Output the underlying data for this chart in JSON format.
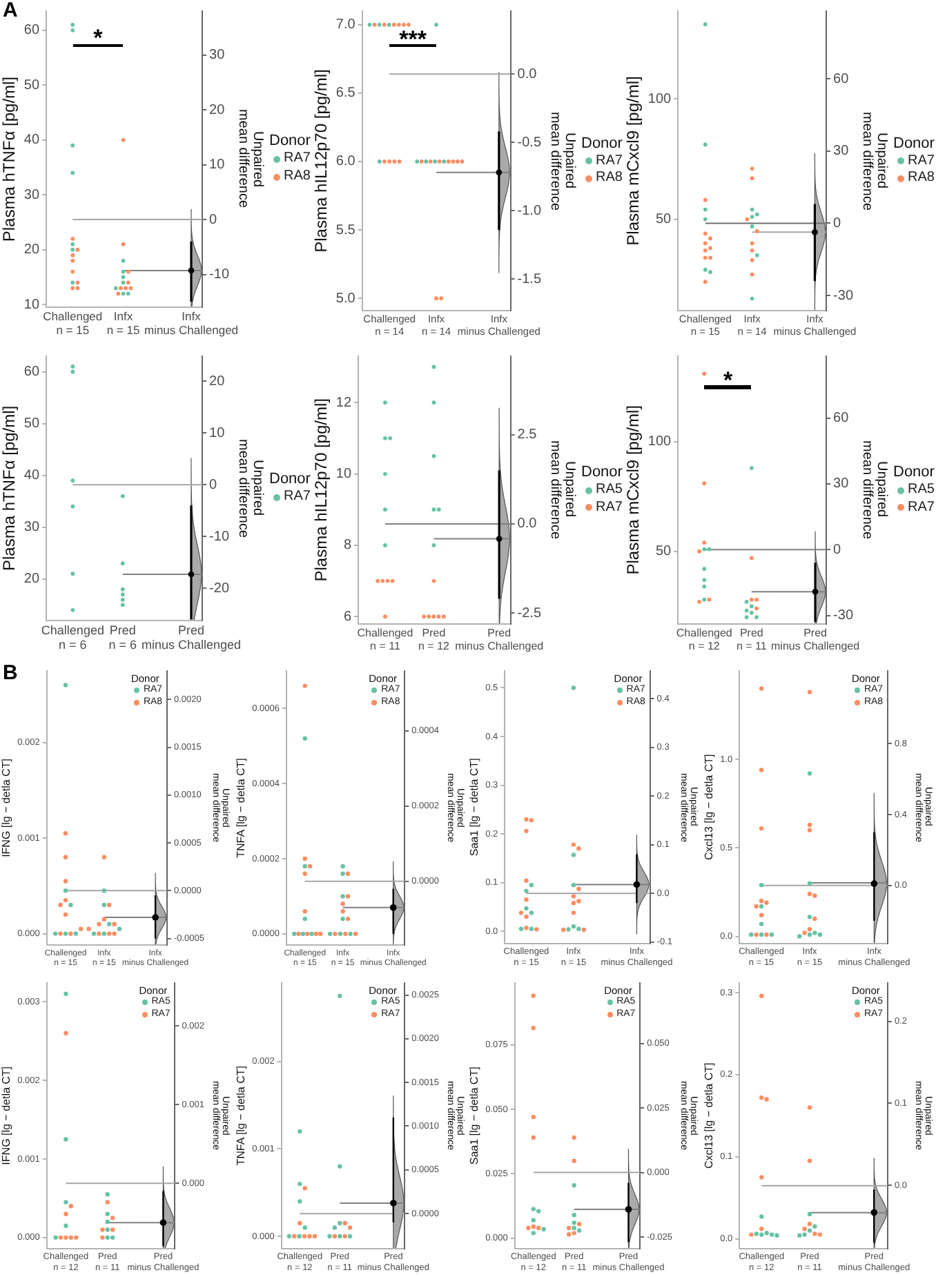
{
  "chart_data": [
    {
      "type": "scatter",
      "title": "A",
      "ylabel": "Plasma hTNFα [pg/ml]",
      "y2label": "Unpaired\nmean difference",
      "legend_title": "Donor",
      "legend": "right",
      "marker": "circle",
      "categories": [
        "Challenged\nn = 15",
        "Infx\nn = 15",
        "Infx\nminus Challenged"
      ],
      "ylim": [
        9.5,
        63.5
      ],
      "yticks": [
        10,
        20,
        30,
        40,
        50,
        60
      ],
      "y2lim": [
        -16,
        38
      ],
      "y2ticks": [
        -10,
        0,
        10,
        20,
        30
      ],
      "series": [
        {
          "name": "RA7",
          "color": "#66c2a5",
          "x": [
            "Challenged\nn = 15",
            "Challenged\nn = 15",
            "Challenged\nn = 15",
            "Challenged\nn = 15",
            "Challenged\nn = 15",
            "Challenged\nn = 15",
            "Challenged\nn = 15",
            "Infx\nn = 15",
            "Infx\nn = 15",
            "Infx\nn = 15",
            "Infx\nn = 15",
            "Infx\nn = 15",
            "Infx\nn = 15",
            "Infx\nn = 15"
          ],
          "values": [
            61,
            60,
            39,
            34,
            21,
            20,
            14,
            18,
            16,
            15,
            14,
            13,
            12,
            12
          ]
        },
        {
          "name": "RA8",
          "color": "#fc8d62",
          "x": [
            "Challenged\nn = 15",
            "Challenged\nn = 15",
            "Challenged\nn = 15",
            "Challenged\nn = 15",
            "Challenged\nn = 15",
            "Challenged\nn = 15",
            "Challenged\nn = 15",
            "Challenged\nn = 15",
            "Infx\nn = 15",
            "Infx\nn = 15",
            "Infx\nn = 15",
            "Infx\nn = 15",
            "Infx\nn = 15",
            "Infx\nn = 15",
            "Infx\nn = 15",
            "Infx\nn = 15"
          ],
          "values": [
            22,
            20,
            19,
            18,
            16,
            14,
            13,
            13,
            40,
            21,
            16,
            14,
            13,
            13,
            13,
            12
          ]
        },
        {
          "color": "#000000",
          "axis": "y2",
          "x": [
            "Infx\nminus Challenged"
          ],
          "values": [
            -9.3
          ],
          "errors": [
            [
              -15,
              -4
            ]
          ]
        }
      ],
      "ref_lines": [
        {
          "axis": "y",
          "value": 25.5,
          "color": "#a6a6a6"
        },
        {
          "axis": "y",
          "value": 16.2,
          "color": "#808080"
        }
      ],
      "annotations": [
        "*"
      ]
    },
    {
      "type": "scatter",
      "ylabel": "Plasma hIL12p70 [pg/ml]",
      "y2label": "Unpaired\nmean difference",
      "legend_title": "Donor",
      "legend": "right",
      "marker": "circle",
      "categories": [
        "Challenged\nn = 14",
        "Infx\nn = 14",
        "Infx\nminus Challenged"
      ],
      "ylim": [
        4.91,
        7.1
      ],
      "yticks": [
        {
          "value": 5,
          "label": "5.0"
        },
        5.5,
        {
          "value": 6,
          "label": "6.0"
        },
        6.5,
        {
          "value": 7,
          "label": "7.0"
        }
      ],
      "y2lim": [
        -1.73,
        0.46
      ],
      "y2ticks": [
        -1.5,
        {
          "value": -1,
          "label": "-1.0"
        },
        -0.5,
        {
          "value": 0,
          "label": "0.0"
        }
      ],
      "series": [
        {
          "name": "RA7",
          "color": "#66c2a5",
          "x": [
            "Challenged\nn = 14",
            "Challenged\nn = 14",
            "Challenged\nn = 14",
            "Challenged\nn = 14",
            "Infx\nn = 14",
            "Infx\nn = 14",
            "Infx\nn = 14",
            "Infx\nn = 14",
            "Infx\nn = 14"
          ],
          "values": [
            7,
            7,
            7,
            6,
            7,
            6,
            6,
            6,
            6
          ]
        },
        {
          "name": "RA8",
          "color": "#fc8d62",
          "x": [
            "Challenged\nn = 14",
            "Challenged\nn = 14",
            "Challenged\nn = 14",
            "Challenged\nn = 14",
            "Challenged\nn = 14",
            "Challenged\nn = 14",
            "Challenged\nn = 14",
            "Challenged\nn = 14",
            "Challenged\nn = 14",
            "Challenged\nn = 14",
            "Infx\nn = 14",
            "Infx\nn = 14",
            "Infx\nn = 14",
            "Infx\nn = 14",
            "Infx\nn = 14",
            "Infx\nn = 14",
            "Infx\nn = 14",
            "Infx\nn = 14",
            "Infx\nn = 14"
          ],
          "values": [
            7,
            7,
            7,
            7,
            7,
            7,
            6,
            6,
            6,
            6,
            6,
            6,
            6,
            6,
            6,
            6,
            6,
            5,
            5
          ]
        },
        {
          "color": "#000000",
          "axis": "y2",
          "x": [
            "Infx\nminus Challenged"
          ],
          "values": [
            -0.72
          ],
          "errors": [
            [
              -1.14,
              -0.42
            ]
          ]
        }
      ],
      "ref_lines": [
        {
          "axis": "y",
          "value": 6.64,
          "color": "#a6a6a6"
        },
        {
          "axis": "y",
          "value": 5.92,
          "color": "#808080"
        }
      ],
      "annotations": [
        "***"
      ]
    },
    {
      "type": "scatter",
      "ylabel": "Plasma mCxcl9 [pg/ml]",
      "y2label": "Unpaired\nmean difference",
      "legend_title": "Donor",
      "legend": "right",
      "marker": "circle",
      "categories": [
        "Challenged\nn = 15",
        "Infx\nn = 14",
        "Infx\nminus Challenged"
      ],
      "ylim": [
        12,
        136.5
      ],
      "yticks": [
        50,
        100
      ],
      "y2lim": [
        -36.3,
        88.2
      ],
      "y2ticks": [
        -30,
        0,
        30,
        60
      ],
      "series": [
        {
          "name": "RA7",
          "color": "#66c2a5",
          "x": [
            "Challenged\nn = 15",
            "Challenged\nn = 15",
            "Challenged\nn = 15",
            "Challenged\nn = 15",
            "Challenged\nn = 15",
            "Challenged\nn = 15",
            "Infx\nn = 14",
            "Infx\nn = 14",
            "Infx\nn = 14",
            "Infx\nn = 14",
            "Infx\nn = 14",
            "Infx\nn = 14"
          ],
          "values": [
            131,
            81,
            54,
            50,
            29,
            28,
            54,
            52,
            51,
            47,
            35,
            17
          ]
        },
        {
          "name": "RA8",
          "color": "#fc8d62",
          "x": [
            "Challenged\nn = 15",
            "Challenged\nn = 15",
            "Challenged\nn = 15",
            "Challenged\nn = 15",
            "Challenged\nn = 15",
            "Challenged\nn = 15",
            "Challenged\nn = 15",
            "Challenged\nn = 15",
            "Challenged\nn = 15",
            "Infx\nn = 14",
            "Infx\nn = 14",
            "Infx\nn = 14",
            "Infx\nn = 14",
            "Infx\nn = 14",
            "Infx\nn = 14",
            "Infx\nn = 14",
            "Infx\nn = 14"
          ],
          "values": [
            58,
            44,
            42,
            40,
            38,
            37,
            34,
            34,
            24,
            71,
            67,
            50,
            45,
            40,
            37,
            33,
            27
          ]
        },
        {
          "color": "#000000",
          "axis": "y2",
          "x": [
            "Infx\nminus Challenged"
          ],
          "values": [
            -3.7
          ],
          "errors": [
            [
              -24,
              8
            ]
          ]
        }
      ],
      "ref_lines": [
        {
          "axis": "y",
          "value": 48.3,
          "color": "#707070"
        },
        {
          "axis": "y",
          "value": 44.6,
          "color": "#a6a6a6"
        }
      ]
    },
    {
      "type": "scatter",
      "ylabel": "Plasma hTNFα [pg/ml]",
      "y2label": "Unpaired\nmean difference",
      "legend_title": "Donor",
      "legend": "right",
      "marker": "circle",
      "categories": [
        "Challenged\nn = 6",
        "Pred\nn = 6",
        "Pred\nminus Challenged"
      ],
      "ylim": [
        12,
        63
      ],
      "yticks": [
        20,
        30,
        40,
        50,
        60
      ],
      "y2lim": [
        -26.2,
        24.8
      ],
      "y2ticks": [
        -20,
        -10,
        0,
        10,
        20
      ],
      "series": [
        {
          "name": "RA7",
          "color": "#66c2a5",
          "x": [
            "Challenged\nn = 6",
            "Challenged\nn = 6",
            "Challenged\nn = 6",
            "Challenged\nn = 6",
            "Challenged\nn = 6",
            "Challenged\nn = 6",
            "Pred\nn = 6",
            "Pred\nn = 6",
            "Pred\nn = 6",
            "Pred\nn = 6",
            "Pred\nn = 6",
            "Pred\nn = 6"
          ],
          "values": [
            61,
            60,
            39,
            34,
            21,
            14,
            36,
            23,
            18,
            17,
            16,
            15
          ]
        },
        {
          "color": "#000000",
          "axis": "y2",
          "x": [
            "Pred\nminus Challenged"
          ],
          "values": [
            -17.3
          ],
          "errors": [
            [
              -26,
              -4
            ]
          ]
        }
      ],
      "ref_lines": [
        {
          "axis": "y",
          "value": 38.2,
          "color": "#a6a6a6"
        },
        {
          "axis": "y",
          "value": 20.9,
          "color": "#808080"
        }
      ]
    },
    {
      "type": "scatter",
      "ylabel": "Plasma hIL12p70 [pg/ml]",
      "y2label": "Unpaired\nmean difference",
      "legend_title": "Donor",
      "legend": "right",
      "marker": "circle",
      "categories": [
        "Challenged\nn = 11",
        "Pred\nn = 12",
        "Pred\nminus Challenged"
      ],
      "ylim": [
        5.8,
        13.3
      ],
      "yticks": [
        6,
        8,
        10,
        12
      ],
      "y2lim": [
        -2.8,
        4.7
      ],
      "y2ticks": [
        -2.5,
        {
          "value": 0,
          "label": "0.0"
        },
        2.5
      ],
      "series": [
        {
          "name": "RA5",
          "color": "#66c2a5",
          "x": [
            "Challenged\nn = 11",
            "Challenged\nn = 11",
            "Challenged\nn = 11",
            "Challenged\nn = 11",
            "Challenged\nn = 11",
            "Challenged\nn = 11",
            "Pred\nn = 12",
            "Pred\nn = 12",
            "Pred\nn = 12",
            "Pred\nn = 12",
            "Pred\nn = 12",
            "Pred\nn = 12"
          ],
          "values": [
            12,
            11,
            11,
            10,
            9,
            8,
            13,
            12,
            10.5,
            9,
            9,
            8
          ]
        },
        {
          "name": "RA7",
          "color": "#fc8d62",
          "x": [
            "Challenged\nn = 11",
            "Challenged\nn = 11",
            "Challenged\nn = 11",
            "Challenged\nn = 11",
            "Challenged\nn = 11",
            "Pred\nn = 12",
            "Pred\nn = 12",
            "Pred\nn = 12",
            "Pred\nn = 12",
            "Pred\nn = 12",
            "Pred\nn = 12"
          ],
          "values": [
            7,
            7,
            7,
            7,
            6,
            7,
            6,
            6,
            6,
            6,
            6
          ]
        },
        {
          "color": "#000000",
          "axis": "y2",
          "x": [
            "Pred\nminus Challenged"
          ],
          "values": [
            -0.42
          ],
          "errors": [
            [
              -2.1,
              1.5
            ]
          ]
        }
      ],
      "ref_lines": [
        {
          "axis": "y",
          "value": 8.6,
          "color": "#808080"
        },
        {
          "axis": "y",
          "value": 8.18,
          "color": "#808080"
        }
      ]
    },
    {
      "type": "scatter",
      "ylabel": "Plasma mCxcl9 [pg/ml]",
      "y2label": "Unpaired\nmean difference",
      "legend_title": "Donor",
      "legend": "right",
      "marker": "circle",
      "categories": [
        "Challenged\nn = 12",
        "Pred\nn = 11",
        "Pred\nminus Challenged"
      ],
      "ylim": [
        17,
        139
      ],
      "yticks": [
        50,
        100
      ],
      "y2lim": [
        -33.8,
        88.2
      ],
      "y2ticks": [
        -30,
        0,
        30,
        60
      ],
      "series": [
        {
          "name": "RA5",
          "color": "#66c2a5",
          "x": [
            "Challenged\nn = 12",
            "Challenged\nn = 12",
            "Challenged\nn = 12",
            "Challenged\nn = 12",
            "Challenged\nn = 12",
            "Challenged\nn = 12",
            "Pred\nn = 11",
            "Pred\nn = 11",
            "Pred\nn = 11",
            "Pred\nn = 11",
            "Pred\nn = 11",
            "Pred\nn = 11",
            "Pred\nn = 11"
          ],
          "values": [
            51,
            51,
            42,
            37,
            34,
            28,
            88,
            27,
            25,
            23,
            22,
            20,
            20
          ]
        },
        {
          "name": "RA7",
          "color": "#fc8d62",
          "x": [
            "Challenged\nn = 12",
            "Challenged\nn = 12",
            "Challenged\nn = 12",
            "Challenged\nn = 12",
            "Challenged\nn = 12",
            "Challenged\nn = 12",
            "Pred\nn = 11",
            "Pred\nn = 11",
            "Pred\nn = 11",
            "Pred\nn = 11"
          ],
          "values": [
            131,
            81,
            54,
            50,
            28,
            27,
            47,
            28,
            28,
            24
          ]
        },
        {
          "color": "#000000",
          "axis": "y2",
          "x": [
            "Pred\nminus Challenged"
          ],
          "values": [
            -19.2
          ],
          "errors": [
            [
              -33,
              -6
            ]
          ]
        }
      ],
      "ref_lines": [
        {
          "axis": "y",
          "value": 50.8,
          "color": "#808080"
        },
        {
          "axis": "y",
          "value": 31.6,
          "color": "#808080"
        }
      ],
      "annotations": [
        "*"
      ]
    },
    {
      "type": "scatter",
      "title": "B",
      "ylabel": "IFNG [lg − detla CT]",
      "y2label": "Unpaired\nmean difference",
      "legend_title": "Donor",
      "legend": "top right",
      "marker": "circle",
      "categories": [
        "Challenged\nn = 15",
        "Infx\nn = 15",
        "Infx\nminus Challenged"
      ],
      "ylim": [
        -0.00012,
        0.00275
      ],
      "yticks": [
        {
          "value": 0,
          "label": "0.000"
        },
        0.001,
        0.002
      ],
      "y2lim": [
        -0.00057,
        0.0023
      ],
      "y2ticks": [
        -0.0005,
        {
          "value": 0,
          "label": "0.0000"
        },
        0.0005,
        {
          "value": 0.001,
          "label": "0.0010"
        },
        0.0015,
        {
          "value": 0.002,
          "label": "0.0020"
        }
      ],
      "series": [
        {
          "name": "RA7",
          "color": "#66c2a5",
          "x": [
            "Challenged\nn = 15",
            "Challenged\nn = 15",
            "Challenged\nn = 15",
            "Challenged\nn = 15",
            "Challenged\nn = 15",
            "Challenged\nn = 15",
            "Infx\nn = 15",
            "Infx\nn = 15",
            "Infx\nn = 15",
            "Infx\nn = 15",
            "Infx\nn = 15",
            "Infx\nn = 15"
          ],
          "values": [
            0.0026,
            0.00045,
            0.0003,
            0,
            0,
            0,
            0.00045,
            0.0003,
            0.0001,
            5e-05,
            0,
            0
          ]
        },
        {
          "name": "RA8",
          "color": "#fc8d62",
          "x": [
            "Challenged\nn = 15",
            "Challenged\nn = 15",
            "Challenged\nn = 15",
            "Challenged\nn = 15",
            "Challenged\nn = 15",
            "Challenged\nn = 15",
            "Challenged\nn = 15",
            "Challenged\nn = 15",
            "Challenged\nn = 15",
            "Infx\nn = 15",
            "Infx\nn = 15",
            "Infx\nn = 15",
            "Infx\nn = 15",
            "Infx\nn = 15",
            "Infx\nn = 15",
            "Infx\nn = 15",
            "Infx\nn = 15",
            "Infx\nn = 15"
          ],
          "values": [
            0.00105,
            0.0008,
            0.00055,
            0.00035,
            0.0003,
            0.0002,
            5e-05,
            0,
            0,
            0.0008,
            0.0003,
            0.00015,
            0.0001,
            0.0001,
            5e-05,
            0,
            0,
            0
          ]
        },
        {
          "color": "#000000",
          "axis": "y2",
          "x": [
            "Infx\nminus Challenged"
          ],
          "values": [
            -0.00028
          ],
          "errors": [
            [
              -0.0005,
              -5e-05
            ]
          ]
        }
      ],
      "ref_lines": [
        {
          "axis": "y",
          "value": 0.00045,
          "color": "#a6a6a6"
        },
        {
          "axis": "y",
          "value": 0.00017,
          "color": "#808080"
        }
      ]
    },
    {
      "type": "scatter",
      "ylabel": "TNFA [lg − detla CT]",
      "y2label": "Unpaired\nmean difference",
      "legend_title": "Donor",
      "legend": "top right",
      "marker": "circle",
      "categories": [
        "Challenged\nn = 15",
        "Infx\nn = 15",
        "Infx\nminus Challenged"
      ],
      "ylim": [
        -3e-05,
        0.0007
      ],
      "yticks": [
        {
          "value": 0,
          "label": "0.0000"
        },
        0.0002,
        0.0004,
        0.0006
      ],
      "y2lim": [
        -0.00017,
        0.00056
      ],
      "y2ticks": [
        {
          "value": 0,
          "label": "0.0000"
        },
        0.0002,
        0.0004
      ],
      "series": [
        {
          "name": "RA7",
          "color": "#66c2a5",
          "x": [
            "Challenged\nn = 15",
            "Challenged\nn = 15",
            "Challenged\nn = 15",
            "Challenged\nn = 15",
            "Challenged\nn = 15",
            "Challenged\nn = 15",
            "Infx\nn = 15",
            "Infx\nn = 15",
            "Infx\nn = 15",
            "Infx\nn = 15",
            "Infx\nn = 15",
            "Infx\nn = 15",
            "Infx\nn = 15"
          ],
          "values": [
            0.00052,
            0.00018,
            4e-05,
            0,
            0,
            0,
            0.00018,
            0.00016,
            0.0001,
            4e-05,
            0,
            0,
            0
          ]
        },
        {
          "name": "RA8",
          "color": "#fc8d62",
          "x": [
            "Challenged\nn = 15",
            "Challenged\nn = 15",
            "Challenged\nn = 15",
            "Challenged\nn = 15",
            "Challenged\nn = 15",
            "Challenged\nn = 15",
            "Challenged\nn = 15",
            "Challenged\nn = 15",
            "Challenged\nn = 15",
            "Infx\nn = 15",
            "Infx\nn = 15",
            "Infx\nn = 15",
            "Infx\nn = 15",
            "Infx\nn = 15",
            "Infx\nn = 15",
            "Infx\nn = 15",
            "Infx\nn = 15"
          ],
          "values": [
            0.00066,
            0.0002,
            0.00018,
            0.00016,
            6e-05,
            0,
            0,
            0,
            0,
            0.00016,
            0.0001,
            8e-05,
            6e-05,
            4e-05,
            0,
            0,
            0
          ]
        },
        {
          "color": "#000000",
          "axis": "y2",
          "x": [
            "Infx\nminus Challenged"
          ],
          "values": [
            -7e-05
          ],
          "errors": [
            [
              -0.00014,
              -2e-05
            ]
          ]
        }
      ],
      "ref_lines": [
        {
          "axis": "y",
          "value": 0.00014,
          "color": "#a6a6a6"
        },
        {
          "axis": "y",
          "value": 7e-05,
          "color": "#808080"
        }
      ]
    },
    {
      "type": "scatter",
      "ylabel": "Saa1 [lg − detla CT]",
      "y2label": "Unpaired\nmean difference",
      "legend_title": "Donor",
      "legend": "top right",
      "marker": "circle",
      "categories": [
        "Challenged\nn = 15",
        "Infx\nn = 15",
        "Infx\nminus Challenged"
      ],
      "ylim": [
        -0.025,
        0.535
      ],
      "yticks": [
        {
          "value": 0,
          "label": "0.0"
        },
        0.1,
        0.2,
        0.3,
        0.4,
        0.5
      ],
      "y2lim": [
        -0.103,
        0.457
      ],
      "y2ticks": [
        -0.1,
        {
          "value": 0,
          "label": "0.0"
        },
        0.1,
        0.2,
        0.3,
        0.4
      ],
      "series": [
        {
          "name": "RA7",
          "color": "#66c2a5",
          "x": [
            "Challenged\nn = 15",
            "Challenged\nn = 15",
            "Challenged\nn = 15",
            "Challenged\nn = 15",
            "Challenged\nn = 15",
            "Challenged\nn = 15",
            "Infx\nn = 15",
            "Infx\nn = 15",
            "Infx\nn = 15",
            "Infx\nn = 15",
            "Infx\nn = 15",
            "Infx\nn = 15"
          ],
          "values": [
            0.095,
            0.083,
            0.047,
            0.038,
            0.005,
            0.005,
            0.5,
            0.157,
            0.095,
            0.01,
            0.005,
            0.004
          ]
        },
        {
          "name": "RA8",
          "color": "#fc8d62",
          "x": [
            "Challenged\nn = 15",
            "Challenged\nn = 15",
            "Challenged\nn = 15",
            "Challenged\nn = 15",
            "Challenged\nn = 15",
            "Challenged\nn = 15",
            "Challenged\nn = 15",
            "Challenged\nn = 15",
            "Challenged\nn = 15",
            "Infx\nn = 15",
            "Infx\nn = 15",
            "Infx\nn = 15",
            "Infx\nn = 15",
            "Infx\nn = 15",
            "Infx\nn = 15",
            "Infx\nn = 15",
            "Infx\nn = 15",
            "Infx\nn = 15"
          ],
          "values": [
            0.23,
            0.228,
            0.206,
            0.104,
            0.065,
            0.038,
            0.03,
            0.007,
            0.004,
            0.178,
            0.17,
            0.087,
            0.072,
            0.062,
            0.058,
            0.038,
            0.003,
            0.003
          ]
        },
        {
          "color": "#000000",
          "axis": "y2",
          "x": [
            "Infx\nminus Challenged"
          ],
          "values": [
            0.018
          ],
          "errors": [
            [
              -0.02,
              0.08
            ]
          ]
        }
      ],
      "ref_lines": [
        {
          "axis": "y",
          "value": 0.078,
          "color": "#a6a6a6"
        },
        {
          "axis": "y",
          "value": 0.096,
          "color": "#808080"
        }
      ]
    },
    {
      "type": "scatter",
      "ylabel": "Cxcl13 [lg − detla CT]",
      "y2label": "Unpaired\nmean difference",
      "legend_title": "Donor",
      "legend": "top right",
      "marker": "circle",
      "categories": [
        "Challenged\nn = 15",
        "Infx\nn = 15",
        "Infx\nminus Challenged"
      ],
      "ylim": [
        -0.04,
        1.5
      ],
      "yticks": [
        {
          "value": 0,
          "label": "0.0"
        },
        0.5,
        {
          "value": 1,
          "label": "1.0"
        }
      ],
      "y2lim": [
        -0.328,
        1.212
      ],
      "y2ticks": [
        {
          "value": 0,
          "label": "0.0"
        },
        0.4,
        0.8
      ],
      "series": [
        {
          "name": "RA7",
          "color": "#66c2a5",
          "x": [
            "Challenged\nn = 15",
            "Challenged\nn = 15",
            "Challenged\nn = 15",
            "Challenged\nn = 15",
            "Challenged\nn = 15",
            "Challenged\nn = 15",
            "Infx\nn = 15",
            "Infx\nn = 15",
            "Infx\nn = 15",
            "Infx\nn = 15",
            "Infx\nn = 15",
            "Infx\nn = 15",
            "Infx\nn = 15"
          ],
          "values": [
            0.29,
            0.17,
            0.07,
            0.01,
            0.01,
            0.01,
            0.92,
            0.3,
            0.11,
            0.02,
            0.01,
            0.01,
            0.0
          ]
        },
        {
          "name": "RA8",
          "color": "#fc8d62",
          "x": [
            "Challenged\nn = 15",
            "Challenged\nn = 15",
            "Challenged\nn = 15",
            "Challenged\nn = 15",
            "Challenged\nn = 15",
            "Challenged\nn = 15",
            "Challenged\nn = 15",
            "Challenged\nn = 15",
            "Challenged\nn = 15",
            "Infx\nn = 15",
            "Infx\nn = 15",
            "Infx\nn = 15",
            "Infx\nn = 15",
            "Infx\nn = 15",
            "Infx\nn = 15",
            "Infx\nn = 15",
            "Infx\nn = 15"
          ],
          "values": [
            1.4,
            0.94,
            0.61,
            0.2,
            0.19,
            0.17,
            0.12,
            0.01,
            0.01,
            1.38,
            0.63,
            0.6,
            0.24,
            0.23,
            0.1,
            0.04,
            0.02
          ]
        },
        {
          "color": "#000000",
          "axis": "y2",
          "x": [
            "Infx\nminus Challenged"
          ],
          "values": [
            0.01
          ],
          "errors": [
            [
              -0.2,
              0.3
            ]
          ]
        }
      ],
      "ref_lines": [
        {
          "axis": "y",
          "value": 0.288,
          "color": "#a6a6a6"
        },
        {
          "axis": "y",
          "value": 0.302,
          "color": "#808080"
        }
      ]
    },
    {
      "type": "scatter",
      "ylabel": "IFNG [lg − detla CT]",
      "y2label": "Unpaired\nmean difference",
      "legend_title": "Donor",
      "legend": "top right",
      "marker": "circle",
      "categories": [
        "Challenged\nn = 12",
        "Pred\nn = 11",
        "Pred\nminus Challenged"
      ],
      "ylim": [
        -0.00014,
        0.00324
      ],
      "yticks": [
        {
          "value": 0,
          "label": "0.000"
        },
        0.001,
        0.002,
        0.003
      ],
      "y2lim": [
        -0.00083,
        0.00255
      ],
      "y2ticks": [
        {
          "value": 0,
          "label": "0.000"
        },
        0.001,
        0.002
      ],
      "series": [
        {
          "name": "RA5",
          "color": "#66c2a5",
          "x": [
            "Challenged\nn = 12",
            "Challenged\nn = 12",
            "Challenged\nn = 12",
            "Challenged\nn = 12",
            "Challenged\nn = 12",
            "Pred\nn = 11",
            "Pred\nn = 11",
            "Pred\nn = 11",
            "Pred\nn = 11",
            "Pred\nn = 11",
            "Pred\nn = 11"
          ],
          "values": [
            0.0031,
            0.00125,
            0.00045,
            0.00015,
            0,
            0.00055,
            0.0003,
            0.0002,
            0.0001,
            0,
            0
          ]
        },
        {
          "name": "RA7",
          "color": "#fc8d62",
          "x": [
            "Challenged\nn = 12",
            "Challenged\nn = 12",
            "Challenged\nn = 12",
            "Challenged\nn = 12",
            "Challenged\nn = 12",
            "Challenged\nn = 12",
            "Challenged\nn = 12",
            "Pred\nn = 11",
            "Pred\nn = 11",
            "Pred\nn = 11",
            "Pred\nn = 11",
            "Pred\nn = 11"
          ],
          "values": [
            0.0026,
            0.0004,
            0.0003,
            0,
            0,
            0,
            0,
            0.00045,
            0.00025,
            0.0001,
            0.0001,
            0
          ]
        },
        {
          "color": "#000000",
          "axis": "y2",
          "x": [
            "Pred\nminus Challenged"
          ],
          "values": [
            -0.0005
          ],
          "errors": [
            [
              -0.0008,
              -0.0001
            ]
          ]
        }
      ],
      "ref_lines": [
        {
          "axis": "y",
          "value": 0.00069,
          "color": "#a6a6a6"
        },
        {
          "axis": "y",
          "value": 0.00019,
          "color": "#808080"
        }
      ]
    },
    {
      "type": "scatter",
      "ylabel": "TNFA [lg − detla CT]",
      "y2label": "Unpaired\nmean difference",
      "legend_title": "Donor",
      "legend": "top right",
      "marker": "circle",
      "categories": [
        "Challenged\nn = 12",
        "Pred\nn = 11",
        "Pred\nminus Challenged"
      ],
      "ylim": [
        -0.00014,
        0.0029
      ],
      "yticks": [
        {
          "value": 0,
          "label": "0.000"
        },
        0.001,
        0.002
      ],
      "y2lim": [
        -0.0004,
        0.00264
      ],
      "y2ticks": [
        {
          "value": 0,
          "label": "0.0000"
        },
        0.0005,
        {
          "value": 0.001,
          "label": "0.0010"
        },
        0.0015,
        {
          "value": 0.002,
          "label": "0.0020"
        },
        0.0025
      ],
      "series": [
        {
          "name": "RA5",
          "color": "#66c2a5",
          "x": [
            "Challenged\nn = 12",
            "Challenged\nn = 12",
            "Challenged\nn = 12",
            "Challenged\nn = 12",
            "Challenged\nn = 12",
            "Challenged\nn = 12",
            "Pred\nn = 11",
            "Pred\nn = 11",
            "Pred\nn = 11",
            "Pred\nn = 11",
            "Pred\nn = 11",
            "Pred\nn = 11",
            "Pred\nn = 11"
          ],
          "values": [
            0.0012,
            0.0006,
            0.0004,
            0.0001,
            0,
            0,
            0.00275,
            0.0008,
            0.00015,
            0.0001,
            0,
            0,
            0
          ]
        },
        {
          "name": "RA7",
          "color": "#fc8d62",
          "x": [
            "Challenged\nn = 12",
            "Challenged\nn = 12",
            "Challenged\nn = 12",
            "Challenged\nn = 12",
            "Challenged\nn = 12",
            "Challenged\nn = 12",
            "Pred\nn = 11",
            "Pred\nn = 11",
            "Pred\nn = 11",
            "Pred\nn = 11"
          ],
          "values": [
            0.00055,
            0.00015,
            0,
            0,
            0,
            0,
            0.00015,
            0.0001,
            0,
            0
          ]
        },
        {
          "color": "#000000",
          "axis": "y2",
          "x": [
            "Pred\nminus Challenged"
          ],
          "values": [
            0.00012
          ],
          "errors": [
            [
              -0.0001,
              0.0011
            ]
          ]
        }
      ],
      "ref_lines": [
        {
          "axis": "y",
          "value": 0.00026,
          "color": "#a6a6a6"
        },
        {
          "axis": "y",
          "value": 0.00038,
          "color": "#808080"
        }
      ]
    },
    {
      "type": "scatter",
      "ylabel": "Saa1 [lg − detla CT]",
      "y2label": "Unpaired\nmean difference",
      "legend_title": "Donor",
      "legend": "top right",
      "marker": "circle",
      "categories": [
        "Challenged\nn = 12",
        "Pred\nn = 11",
        "Pred\nminus Challenged"
      ],
      "ylim": [
        -0.004,
        0.099
      ],
      "yticks": [
        {
          "value": 0,
          "label": "0.000"
        },
        0.025,
        {
          "value": 0.05,
          "label": "0.050"
        },
        0.075
      ],
      "y2lim": [
        -0.0295,
        0.0735
      ],
      "y2ticks": [
        -0.025,
        {
          "value": 0,
          "label": "0.000"
        },
        0.025,
        {
          "value": 0.05,
          "label": "0.050"
        }
      ],
      "series": [
        {
          "name": "RA5",
          "color": "#66c2a5",
          "x": [
            "Challenged\nn = 12",
            "Challenged\nn = 12",
            "Challenged\nn = 12",
            "Challenged\nn = 12",
            "Challenged\nn = 12",
            "Pred\nn = 11",
            "Pred\nn = 11",
            "Pred\nn = 11",
            "Pred\nn = 11",
            "Pred\nn = 11"
          ],
          "values": [
            0.0113,
            0.0105,
            0.007,
            0.0035,
            0.002,
            0.0205,
            0.009,
            0.006,
            0.004,
            0.003
          ]
        },
        {
          "name": "RA7",
          "color": "#fc8d62",
          "x": [
            "Challenged\nn = 12",
            "Challenged\nn = 12",
            "Challenged\nn = 12",
            "Challenged\nn = 12",
            "Challenged\nn = 12",
            "Challenged\nn = 12",
            "Challenged\nn = 12",
            "Pred\nn = 11",
            "Pred\nn = 11",
            "Pred\nn = 11",
            "Pred\nn = 11",
            "Pred\nn = 11",
            "Pred\nn = 11"
          ],
          "values": [
            0.094,
            0.0815,
            0.047,
            0.039,
            0.0045,
            0.004,
            0.004,
            0.039,
            0.03,
            0.0055,
            0.004,
            0.002,
            0.0015
          ]
        },
        {
          "color": "#000000",
          "axis": "y2",
          "x": [
            "Pred\nminus Challenged"
          ],
          "values": [
            -0.0143
          ],
          "errors": [
            [
              -0.027,
              -0.004
            ]
          ]
        }
      ],
      "ref_lines": [
        {
          "axis": "y",
          "value": 0.0255,
          "color": "#a6a6a6"
        },
        {
          "axis": "y",
          "value": 0.0112,
          "color": "#808080"
        }
      ]
    },
    {
      "type": "scatter",
      "ylabel": "Cxcl13 [lg − detla CT]",
      "y2label": "Unpaired\nmean difference",
      "legend_title": "Donor",
      "legend": "top right",
      "marker": "circle",
      "categories": [
        "Challenged\nn = 12",
        "Pred\nn = 11",
        "Pred\nminus Challenged"
      ],
      "ylim": [
        -0.012,
        0.312
      ],
      "yticks": [
        {
          "value": 0,
          "label": "0.0"
        },
        0.1,
        0.2,
        0.3
      ],
      "y2lim": [
        -0.077,
        0.247
      ],
      "y2ticks": [
        {
          "value": 0,
          "label": "0.0"
        },
        0.1,
        0.2
      ],
      "series": [
        {
          "name": "RA5",
          "color": "#66c2a5",
          "x": [
            "Challenged\nn = 12",
            "Challenged\nn = 12",
            "Challenged\nn = 12",
            "Challenged\nn = 12",
            "Challenged\nn = 12",
            "Challenged\nn = 12",
            "Pred\nn = 11",
            "Pred\nn = 11",
            "Pred\nn = 11",
            "Pred\nn = 11",
            "Pred\nn = 11"
          ],
          "values": [
            0.027,
            0.007,
            0.006,
            0.005,
            0.005,
            0.004,
            0.03,
            0.015,
            0.01,
            0.005,
            0.004
          ]
        },
        {
          "name": "RA7",
          "color": "#fc8d62",
          "x": [
            "Challenged\nn = 12",
            "Challenged\nn = 12",
            "Challenged\nn = 12",
            "Challenged\nn = 12",
            "Challenged\nn = 12",
            "Challenged\nn = 12",
            "Pred\nn = 11",
            "Pred\nn = 11",
            "Pred\nn = 11",
            "Pred\nn = 11",
            "Pred\nn = 11",
            "Pred\nn = 11"
          ],
          "values": [
            0.296,
            0.172,
            0.17,
            0.075,
            0.012,
            0.005,
            0.16,
            0.095,
            0.018,
            0.012,
            0.006,
            0.005
          ]
        },
        {
          "color": "#000000",
          "axis": "y2",
          "x": [
            "Pred\nminus Challenged"
          ],
          "values": [
            -0.033
          ],
          "errors": [
            [
              -0.07,
              -0.005
            ]
          ]
        }
      ],
      "ref_lines": [
        {
          "axis": "y",
          "value": 0.0647,
          "color": "#a6a6a6"
        },
        {
          "axis": "y",
          "value": 0.0318,
          "color": "#808080"
        }
      ]
    }
  ]
}
